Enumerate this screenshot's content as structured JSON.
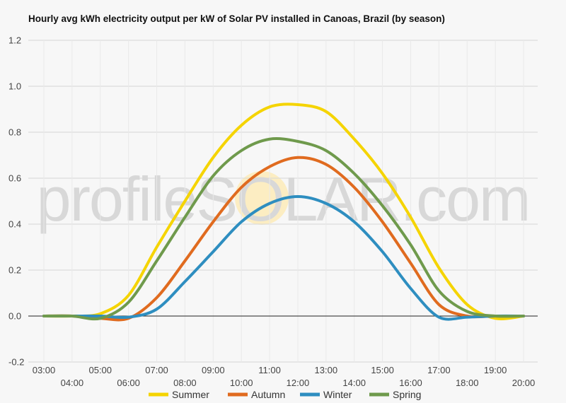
{
  "chart_data": {
    "type": "line",
    "title": "Hourly avg kWh electricity output per kW of Solar PV installed in Canoas, Brazil (by season)",
    "xlabel": "",
    "ylabel": "",
    "categories": [
      "03:00",
      "04:00",
      "05:00",
      "06:00",
      "07:00",
      "08:00",
      "09:00",
      "10:00",
      "11:00",
      "12:00",
      "13:00",
      "14:00",
      "15:00",
      "16:00",
      "17:00",
      "18:00",
      "19:00",
      "20:00"
    ],
    "ylim": [
      -0.2,
      1.2
    ],
    "yticks": [
      -0.2,
      0.0,
      0.2,
      0.4,
      0.6,
      0.8,
      1.0,
      1.2
    ],
    "grid": true,
    "legend_position": "bottom",
    "series": [
      {
        "name": "Summer",
        "color": "#f5d400",
        "values": [
          0,
          0,
          0.01,
          0.09,
          0.3,
          0.5,
          0.69,
          0.83,
          0.91,
          0.92,
          0.89,
          0.77,
          0.62,
          0.43,
          0.21,
          0.05,
          -0.01,
          0
        ]
      },
      {
        "name": "Autumn",
        "color": "#e06b1f",
        "values": [
          0,
          0,
          -0.01,
          -0.01,
          0.08,
          0.24,
          0.41,
          0.56,
          0.65,
          0.69,
          0.66,
          0.56,
          0.41,
          0.23,
          0.05,
          0.0,
          0,
          0
        ]
      },
      {
        "name": "Winter",
        "color": "#2e8ec0",
        "values": [
          0,
          0,
          0,
          -0.005,
          0.03,
          0.15,
          0.28,
          0.41,
          0.49,
          0.52,
          0.49,
          0.41,
          0.28,
          0.12,
          -0.005,
          -0.005,
          0,
          0
        ]
      },
      {
        "name": "Spring",
        "color": "#6f9a4c",
        "values": [
          0,
          0,
          -0.01,
          0.06,
          0.24,
          0.43,
          0.61,
          0.72,
          0.77,
          0.76,
          0.72,
          0.62,
          0.48,
          0.31,
          0.11,
          0.02,
          0,
          0
        ]
      }
    ]
  },
  "watermark": "profileSOLAR.com"
}
